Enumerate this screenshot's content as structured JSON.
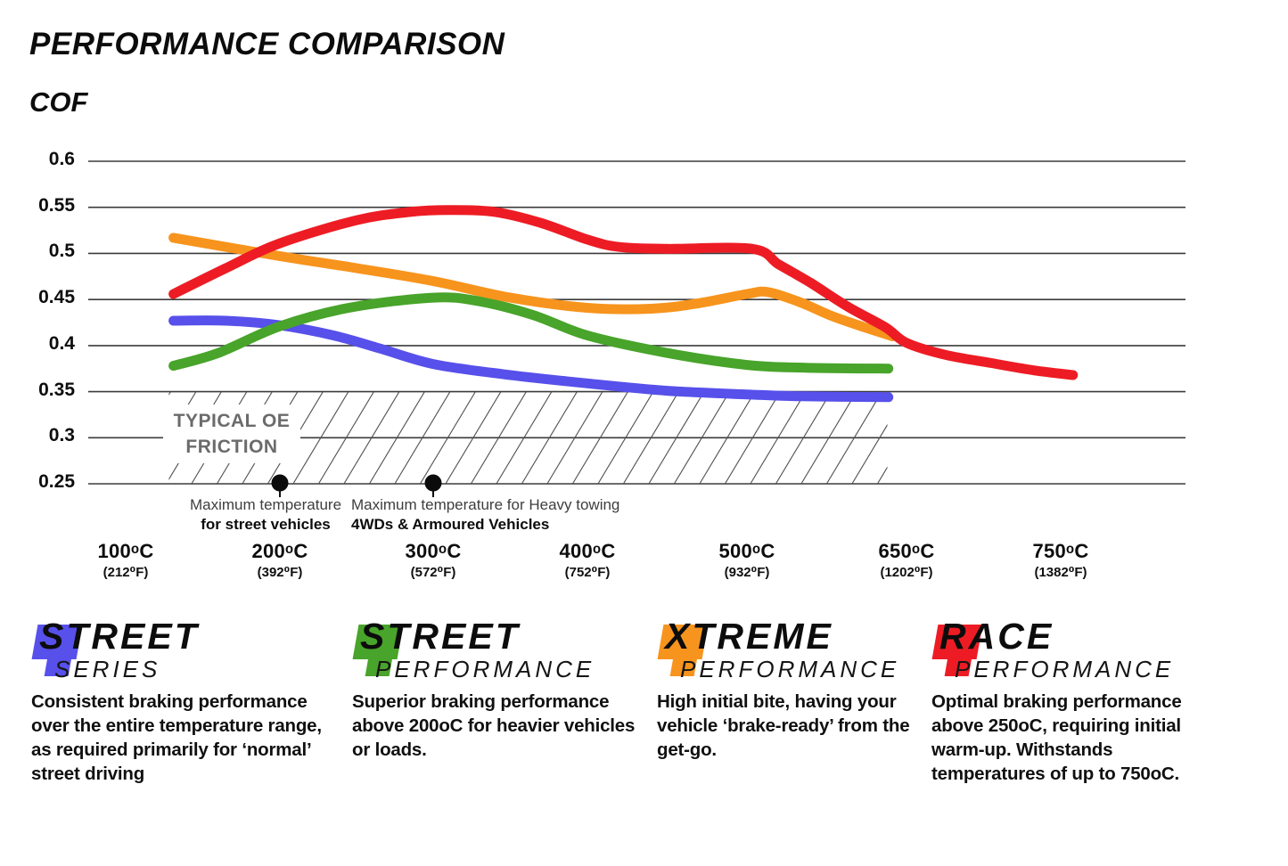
{
  "title": "PERFORMANCE COMPARISON",
  "cof_label": "COF",
  "chart_data": {
    "type": "line",
    "title": "PERFORMANCE COMPARISON",
    "ylabel": "COF",
    "ylim": [
      0.25,
      0.6
    ],
    "grid": "horizontal",
    "yticks": [
      {
        "value": 0.6,
        "label": "0.6"
      },
      {
        "value": 0.55,
        "label": "0.55"
      },
      {
        "value": 0.5,
        "label": "0.5"
      },
      {
        "value": 0.45,
        "label": "0.45"
      },
      {
        "value": 0.4,
        "label": "0.4"
      },
      {
        "value": 0.35,
        "label": "0.35"
      },
      {
        "value": 0.3,
        "label": "0.3"
      },
      {
        "value": 0.25,
        "label": "0.25"
      }
    ],
    "xticks": [
      {
        "t": 100,
        "label": "100ᵒC",
        "sub": "(212⁰F)"
      },
      {
        "t": 200,
        "label": "200ᵒC",
        "sub": "(392⁰F)"
      },
      {
        "t": 300,
        "label": "300ᵒC",
        "sub": "(572⁰F)"
      },
      {
        "t": 400,
        "label": "400ᵒC",
        "sub": "(752⁰F)"
      },
      {
        "t": 500,
        "label": "500ᵒC",
        "sub": "(932⁰F)"
      },
      {
        "t": 650,
        "label": "650ᵒC",
        "sub": "(1202⁰F)"
      },
      {
        "t": 750,
        "label": "750ᵒC",
        "sub": "(1382⁰F)"
      }
    ],
    "series": [
      {
        "name": "Street Series",
        "color": "#5750EA",
        "points": [
          [
            131,
            0.427
          ],
          [
            165,
            0.427
          ],
          [
            200,
            0.422
          ],
          [
            235,
            0.411
          ],
          [
            265,
            0.397
          ],
          [
            300,
            0.38
          ],
          [
            345,
            0.369
          ],
          [
            400,
            0.359
          ],
          [
            450,
            0.351
          ],
          [
            500,
            0.347
          ],
          [
            550,
            0.345
          ],
          [
            633,
            0.344
          ]
        ]
      },
      {
        "name": "Street Performance",
        "color": "#48A42A",
        "points": [
          [
            131,
            0.378
          ],
          [
            160,
            0.392
          ],
          [
            200,
            0.421
          ],
          [
            245,
            0.441
          ],
          [
            300,
            0.452
          ],
          [
            330,
            0.448
          ],
          [
            365,
            0.433
          ],
          [
            400,
            0.411
          ],
          [
            450,
            0.392
          ],
          [
            500,
            0.379
          ],
          [
            555,
            0.376
          ],
          [
            633,
            0.375
          ]
        ]
      },
      {
        "name": "Xtreme Performance",
        "color": "#F7941D",
        "points": [
          [
            131,
            0.517
          ],
          [
            200,
            0.497
          ],
          [
            250,
            0.484
          ],
          [
            300,
            0.47
          ],
          [
            350,
            0.452
          ],
          [
            400,
            0.441
          ],
          [
            440,
            0.44
          ],
          [
            470,
            0.446
          ],
          [
            500,
            0.456
          ],
          [
            520,
            0.458
          ],
          [
            550,
            0.447
          ],
          [
            580,
            0.432
          ],
          [
            610,
            0.42
          ],
          [
            637,
            0.41
          ]
        ]
      },
      {
        "name": "Race Performance",
        "color": "#ED1C24",
        "points": [
          [
            131,
            0.456
          ],
          [
            165,
            0.484
          ],
          [
            200,
            0.511
          ],
          [
            250,
            0.536
          ],
          [
            285,
            0.545
          ],
          [
            310,
            0.547
          ],
          [
            340,
            0.545
          ],
          [
            370,
            0.533
          ],
          [
            400,
            0.515
          ],
          [
            420,
            0.507
          ],
          [
            450,
            0.505
          ],
          [
            505,
            0.505
          ],
          [
            530,
            0.488
          ],
          [
            560,
            0.468
          ],
          [
            595,
            0.442
          ],
          [
            630,
            0.42
          ],
          [
            650,
            0.403
          ],
          [
            675,
            0.39
          ],
          [
            705,
            0.381
          ],
          [
            733,
            0.373
          ],
          [
            758,
            0.368
          ]
        ]
      }
    ],
    "band": {
      "label_line1": "TYPICAL OE",
      "label_line2": "FRICTION",
      "cof_range": [
        0.25,
        0.35
      ],
      "t_range": [
        128,
        632
      ]
    },
    "annotations": [
      {
        "t": 200,
        "cof": 0.25,
        "line1": "Maximum temperature",
        "line2": "for street vehicles"
      },
      {
        "t": 300,
        "cof": 0.25,
        "line1": "Maximum temperature for Heavy towing",
        "line2": "4WDs & Armoured Vehicles"
      }
    ]
  },
  "legend": [
    {
      "word1": "STREET",
      "word2": "SERIES",
      "color": "#5750EA",
      "description": "Consistent braking performance over the entire temperature range, as required primarily for ‘normal’ street driving"
    },
    {
      "word1": "STREET",
      "word2": "PERFORMANCE",
      "color": "#48A42A",
      "description": "Superior braking performance above 200oC for heavier vehicles or loads."
    },
    {
      "word1": "XTREME",
      "word2": "PERFORMANCE",
      "color": "#F7941D",
      "description": "High initial bite, having your vehicle ‘brake-ready’ from the get-go."
    },
    {
      "word1": "RACE",
      "word2": "PERFORMANCE",
      "color": "#ED1C24",
      "description": "Optimal braking performance above 250oC, requiring initial warm-up. Withstands temperatures of up to 750oC."
    }
  ]
}
